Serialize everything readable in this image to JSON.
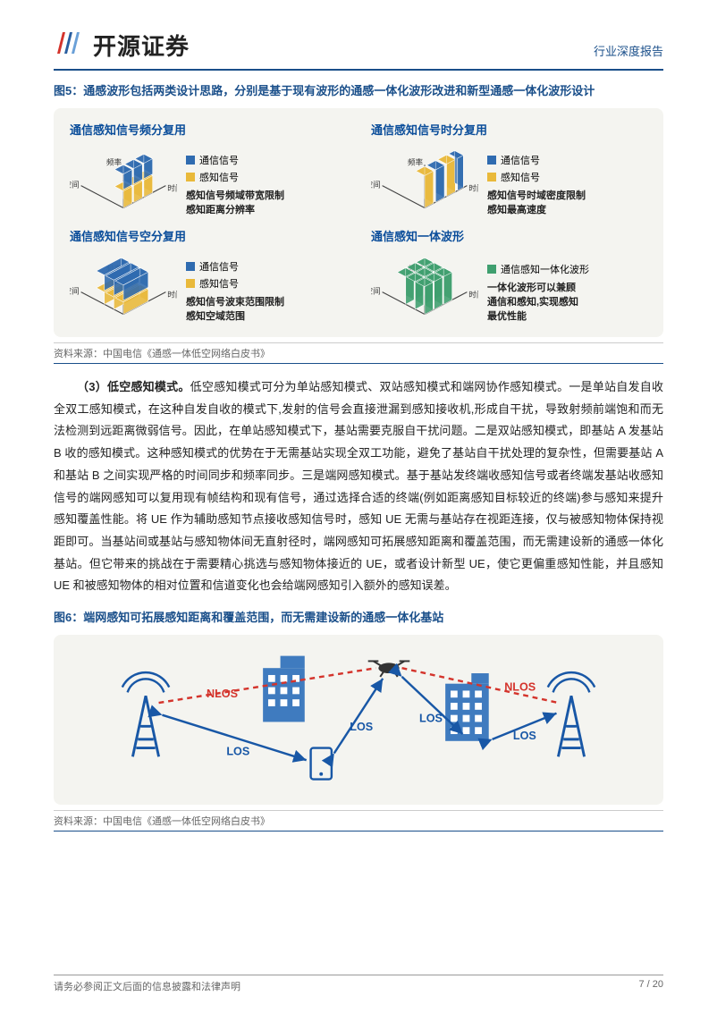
{
  "header": {
    "company": "开源证券",
    "category": "行业深度报告"
  },
  "colors": {
    "brand_blue": "#1a4f8a",
    "title_blue": "#0a4d9a",
    "comm_signal": "#2f6bb0",
    "sense_signal": "#e9b93a",
    "integrated": "#3f9f6f",
    "panel_bg": "#f4f4f0",
    "axis": "#444",
    "nlos": "#d4342c",
    "los_line": "#1857a6",
    "dash": "#c44",
    "building": "#3f7bbf",
    "drone": "#333"
  },
  "fig5": {
    "title": "图5：通感波形包括两类设计思路，分别是基于现有波形的通感一体化波形改进和新型通感一体化波形设计",
    "axes": {
      "x": "时间",
      "y": "频率",
      "z": "空间"
    },
    "legend": {
      "comm": "通信信号",
      "sense": "感知信号",
      "integrated": "通信感知一体化波形"
    },
    "panels": [
      {
        "title": "通信感知信号频分复用",
        "caption": "感知信号频域带宽限制\n感知距离分辨率",
        "show": {
          "comm": true,
          "sense": true,
          "integrated": false
        },
        "style": "freq"
      },
      {
        "title": "通信感知信号时分复用",
        "caption": "感知信号时域密度限制\n感知最高速度",
        "show": {
          "comm": true,
          "sense": true,
          "integrated": false
        },
        "style": "time"
      },
      {
        "title": "通信感知信号空分复用",
        "caption": "感知信号波束范围限制\n感知空域范围",
        "show": {
          "comm": true,
          "sense": true,
          "integrated": false
        },
        "style": "space"
      },
      {
        "title": "通信感知一体波形",
        "caption": "一体化波形可以兼顾\n通信和感知,实现感知\n最优性能",
        "show": {
          "comm": false,
          "sense": false,
          "integrated": true
        },
        "style": "integrated"
      }
    ]
  },
  "source1": "资料来源：中国电信《通感一体低空网络白皮书》",
  "body": {
    "lead": "（3）低空感知模式。",
    "text": "低空感知模式可分为单站感知模式、双站感知模式和端网协作感知模式。一是单站自发自收全双工感知模式，在这种自发自收的模式下,发射的信号会直接泄漏到感知接收机,形成自干扰，导致射频前端饱和而无法检测到远距离微弱信号。因此，在单站感知模式下，基站需要克服自干扰问题。二是双站感知模式，即基站 A 发基站 B 收的感知模式。这种感知模式的优势在于无需基站实现全双工功能，避免了基站自干扰处理的复杂性，但需要基站 A 和基站 B 之间实现严格的时间同步和频率同步。三是端网感知模式。基于基站发终端收感知信号或者终端发基站收感知信号的端网感知可以复用现有帧结构和现有信号，通过选择合适的终端(例如距离感知目标较近的终端)参与感知来提升感知覆盖性能。将 UE 作为辅助感知节点接收感知信号时，感知 UE 无需与基站存在视距连接，仅与被感知物体保持视距即可。当基站间或基站与感知物体间无直射径时，端网感知可拓展感知距离和覆盖范围，而无需建设新的通感一体化基站。但它带来的挑战在于需要精心挑选与感知物体接近的 UE，或者设计新型 UE，使它更偏重感知性能，并且感知 UE 和被感知物体的相对位置和信道变化也会给端网感知引入额外的感知误差。"
  },
  "fig6": {
    "title": "图6：端网感知可拓展感知距离和覆盖范围，而无需建设新的通感一体化基站",
    "labels": {
      "nlos": "NLOS",
      "los": "LOS"
    }
  },
  "source2": "资料来源：中国电信《通感一体低空网络白皮书》",
  "footer": {
    "left": "请务必参阅正文后面的信息披露和法律声明",
    "page": "7 / 20"
  }
}
